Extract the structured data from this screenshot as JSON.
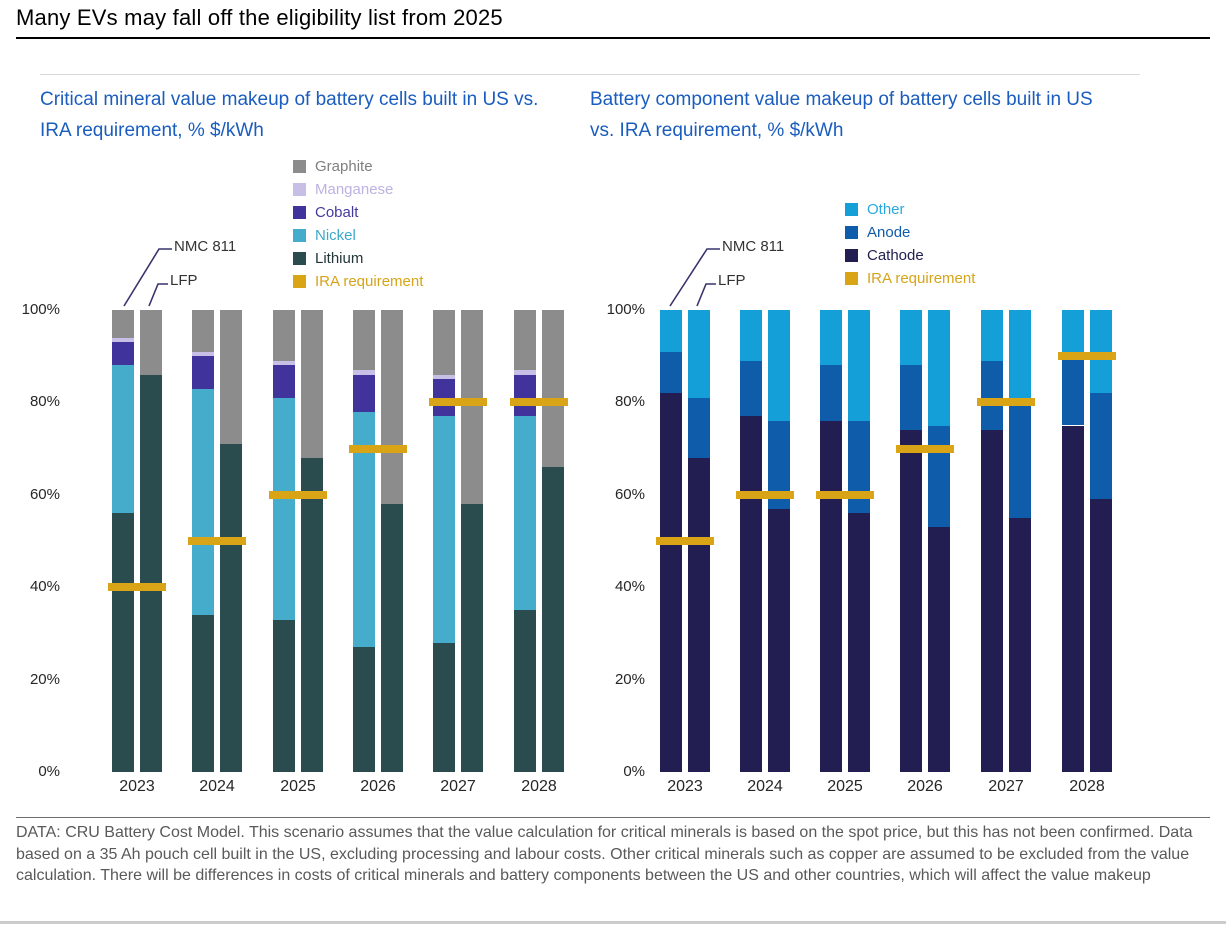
{
  "page": {
    "title": "Many EVs may fall off the eligibility list from 2025",
    "footer": "DATA: CRU Battery Cost Model. This scenario assumes that the value calculation for critical minerals is based on the spot price, but this has not been confirmed. Data based on a 35 Ah pouch cell built in the US, excluding processing and labour costs. Other critical minerals such as copper are assumed to be excluded from the value calculation. There will be differences in costs of critical minerals and battery components between the US and other countries, which will affect the value makeup"
  },
  "colors": {
    "title_blue": "#1a5dbe",
    "graphite": "#8c8c8c",
    "manganese": "#c8bfe7",
    "cobalt": "#40339b",
    "nickel": "#45adcb",
    "lithium": "#2b4c4f",
    "other": "#149fd9",
    "anode": "#0f5cab",
    "cathode": "#221e52",
    "ira": "#d9a516",
    "callout_line": "#39346e"
  },
  "chart_data": [
    {
      "type": "bar",
      "stacked": true,
      "title": "Critical mineral value makeup of battery cells built in US vs. IRA requirement, % $/kWh",
      "ylabel": "% $/kWh",
      "ylim": [
        0,
        100
      ],
      "grid": false,
      "yticks": [
        "0%",
        "20%",
        "40%",
        "60%",
        "80%",
        "100%"
      ],
      "categories": [
        "2023",
        "2024",
        "2025",
        "2026",
        "2027",
        "2028"
      ],
      "bar_labels": [
        "NMC 811",
        "LFP"
      ],
      "legend_position": "top-right",
      "legend": [
        {
          "label": "Graphite",
          "color": "#8c8c8c",
          "text_color": "#7f7f7f"
        },
        {
          "label": "Manganese",
          "color": "#c8bfe7",
          "text_color": "#bdb2e2"
        },
        {
          "label": "Cobalt",
          "color": "#40339b",
          "text_color": "#453a9e"
        },
        {
          "label": "Nickel",
          "color": "#45adcb",
          "text_color": "#3fa8c9"
        },
        {
          "label": "Lithium",
          "color": "#2b4c4f",
          "text_color": "#223638"
        },
        {
          "label": "IRA requirement",
          "color": "#d9a516",
          "text_color": "#d6a418"
        }
      ],
      "series_nmc811": [
        {
          "name": "Lithium",
          "color": "#2b4c4f",
          "values": [
            56,
            34,
            33,
            27,
            28,
            35
          ]
        },
        {
          "name": "Nickel",
          "color": "#45adcb",
          "values": [
            32,
            49,
            48,
            51,
            49,
            42
          ]
        },
        {
          "name": "Cobalt",
          "color": "#40339b",
          "values": [
            5,
            7,
            7,
            8,
            8,
            9
          ]
        },
        {
          "name": "Manganese",
          "color": "#c8bfe7",
          "values": [
            1,
            1,
            1,
            1,
            1,
            1
          ]
        },
        {
          "name": "Graphite",
          "color": "#8c8c8c",
          "values": [
            6,
            9,
            11,
            13,
            14,
            13
          ]
        }
      ],
      "series_lfp": [
        {
          "name": "Lithium",
          "color": "#2b4c4f",
          "values": [
            86,
            71,
            68,
            58,
            58,
            66
          ]
        },
        {
          "name": "Graphite",
          "color": "#8c8c8c",
          "values": [
            14,
            29,
            32,
            42,
            42,
            34
          ]
        }
      ],
      "ira_requirement": [
        40,
        50,
        60,
        70,
        80,
        80
      ]
    },
    {
      "type": "bar",
      "stacked": true,
      "title": "Battery component value makeup of battery cells built in US vs. IRA requirement, % $/kWh",
      "ylabel": "% $/kWh",
      "ylim": [
        0,
        100
      ],
      "grid": false,
      "yticks": [
        "0%",
        "20%",
        "40%",
        "60%",
        "80%",
        "100%"
      ],
      "categories": [
        "2023",
        "2024",
        "2025",
        "2026",
        "2027",
        "2028"
      ],
      "bar_labels": [
        "NMC 811",
        "LFP"
      ],
      "legend_position": "top-right",
      "legend": [
        {
          "label": "Other",
          "color": "#149fd9",
          "text_color": "#29a9e0"
        },
        {
          "label": "Anode",
          "color": "#0f5cab",
          "text_color": "#0f5cab"
        },
        {
          "label": "Cathode",
          "color": "#221e52",
          "text_color": "#232052"
        },
        {
          "label": "IRA requirement",
          "color": "#d9a516",
          "text_color": "#d6a418"
        }
      ],
      "series_nmc811": [
        {
          "name": "Cathode",
          "color": "#221e52",
          "values": [
            82,
            77,
            76,
            74,
            74,
            75
          ]
        },
        {
          "name": "Anode",
          "color": "#0f5cab",
          "values": [
            9,
            12,
            12,
            14,
            15,
            15
          ]
        },
        {
          "name": "Other",
          "color": "#149fd9",
          "values": [
            9,
            11,
            12,
            12,
            11,
            10
          ]
        }
      ],
      "series_lfp": [
        {
          "name": "Cathode",
          "color": "#221e52",
          "values": [
            68,
            57,
            56,
            53,
            55,
            59
          ]
        },
        {
          "name": "Anode",
          "color": "#0f5cab",
          "values": [
            13,
            19,
            20,
            22,
            25,
            23
          ]
        },
        {
          "name": "Other",
          "color": "#149fd9",
          "values": [
            19,
            24,
            24,
            25,
            20,
            18
          ]
        }
      ],
      "ira_requirement": [
        50,
        60,
        60,
        70,
        80,
        90
      ]
    }
  ]
}
